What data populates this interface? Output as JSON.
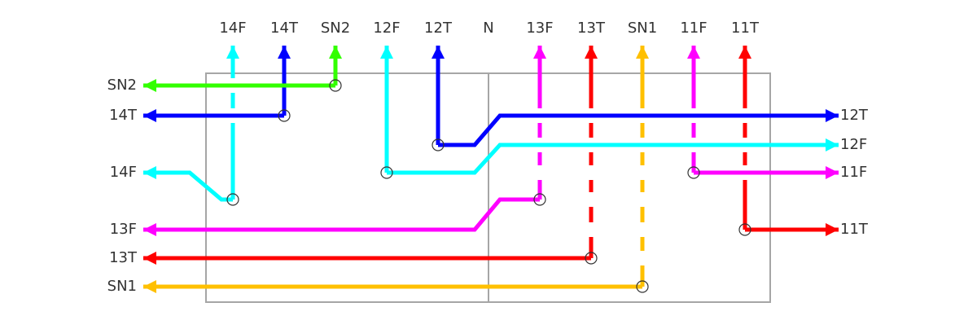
{
  "top_labels": [
    "14F",
    "14T",
    "SN2",
    "12F",
    "12T",
    "N",
    "13F",
    "13T",
    "SN1",
    "11F",
    "11T"
  ],
  "left_labels": [
    "SN2",
    "14T",
    "14F",
    "13F",
    "13T",
    "SN1"
  ],
  "right_labels": [
    "12T",
    "12F",
    "11F",
    "11T"
  ]
}
